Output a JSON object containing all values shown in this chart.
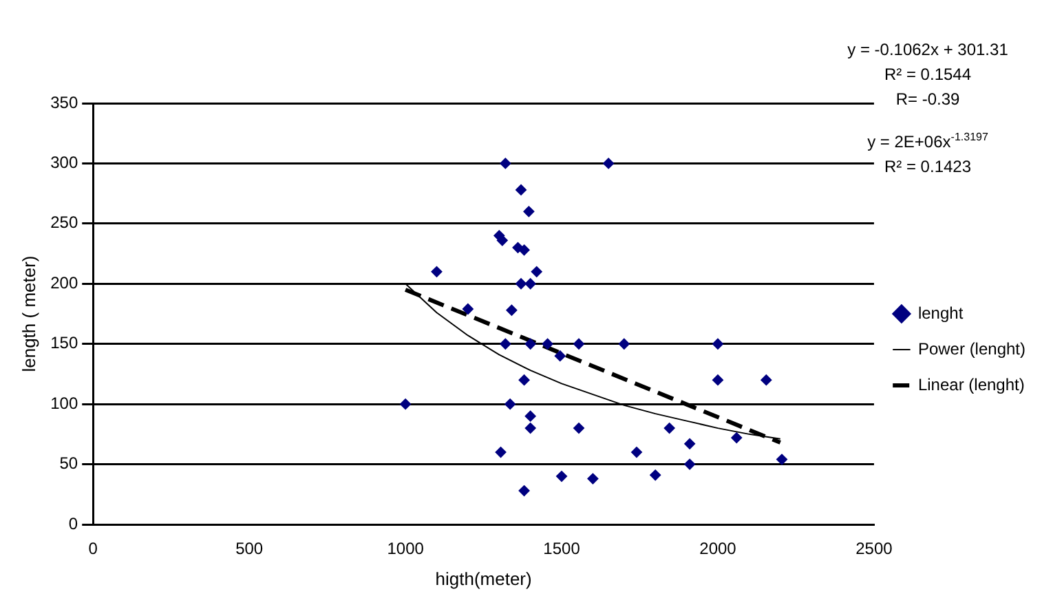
{
  "chart_data": {
    "type": "scatter",
    "xlabel": "higth(meter)",
    "ylabel": "length ( meter)",
    "xlim": [
      0,
      2500
    ],
    "xticks": [
      0,
      500,
      1000,
      1500,
      2000,
      2500
    ],
    "ylim": [
      0,
      350
    ],
    "yticks": [
      0,
      50,
      100,
      150,
      200,
      250,
      300,
      350
    ],
    "grid": "y",
    "legend": "right",
    "series": [
      {
        "name": "lenght",
        "marker": "diamond",
        "color": "#000080",
        "x": [
          1320,
          1370,
          1395,
          1300,
          1310,
          1360,
          1380,
          1100,
          1420,
          1370,
          1400,
          1200,
          1340,
          1320,
          1400,
          1455,
          1380,
          1000,
          1335,
          1400,
          1400,
          1305,
          1380,
          1650,
          1495,
          1555,
          1700,
          2000,
          2000,
          2155,
          1555,
          1845,
          1740,
          1910,
          1910,
          2060,
          2205,
          1500,
          1600,
          1800
        ],
        "values": [
          300,
          278,
          260,
          240,
          236,
          230,
          228,
          210,
          210,
          200,
          200,
          179,
          178,
          150,
          150,
          150,
          120,
          100,
          100,
          90,
          80,
          60,
          28,
          300,
          140,
          150,
          150,
          150,
          120,
          120,
          80,
          80,
          60,
          67,
          50,
          72,
          54,
          40,
          38,
          41
        ]
      },
      {
        "name": "Power (lenght)",
        "type": "line",
        "marker": "none",
        "color": "#000000",
        "line_style": "solid",
        "x": [
          1000,
          1100,
          1200,
          1300,
          1400,
          1500,
          1600,
          1700,
          1800,
          1900,
          2000,
          2100,
          2200
        ],
        "values": [
          200,
          176,
          157,
          141,
          128,
          117,
          108,
          99,
          92,
          86,
          80,
          75,
          71
        ]
      },
      {
        "name": "Linear (lenght)",
        "type": "line",
        "marker": "none",
        "color": "#000000",
        "line_style": "dashed",
        "x": [
          1000,
          2200
        ],
        "values": [
          195,
          68
        ]
      }
    ],
    "annotations": [
      "y = -0.1062x + 301.31",
      "R² = 0.1544",
      "R= -0.39",
      "y = 2E+06x$^{-1.3197}$",
      "R² = 0.1423"
    ]
  }
}
